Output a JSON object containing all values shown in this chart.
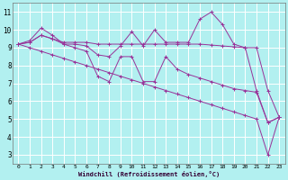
{
  "xlabel": "Windchill (Refroidissement éolien,°C)",
  "xlim": [
    -0.5,
    23.5
  ],
  "ylim": [
    2.5,
    11.5
  ],
  "xticks": [
    0,
    1,
    2,
    3,
    4,
    5,
    6,
    7,
    8,
    9,
    10,
    11,
    12,
    13,
    14,
    15,
    16,
    17,
    18,
    19,
    20,
    21,
    22,
    23
  ],
  "yticks": [
    3,
    4,
    5,
    6,
    7,
    8,
    9,
    10,
    11
  ],
  "background_color": "#b2f0f0",
  "grid_color": "#ffffff",
  "line_color": "#993399",
  "lines": [
    {
      "x": [
        0,
        1,
        2,
        3,
        4,
        5,
        6,
        7,
        8,
        9,
        10,
        11,
        12,
        13,
        14,
        15,
        16,
        17,
        18,
        19,
        20,
        21,
        22,
        23
      ],
      "y": [
        9.2,
        9.4,
        10.1,
        9.7,
        9.2,
        9.2,
        9.1,
        8.6,
        8.5,
        9.1,
        9.9,
        9.1,
        10.0,
        9.3,
        9.3,
        9.3,
        10.6,
        11.0,
        10.3,
        9.2,
        9.0,
        6.6,
        4.8,
        5.1
      ]
    },
    {
      "x": [
        0,
        1,
        2,
        3,
        4,
        5,
        6,
        7,
        8,
        9,
        10,
        11,
        12,
        13,
        14,
        15,
        16,
        17,
        18,
        19,
        20,
        21,
        22,
        23
      ],
      "y": [
        9.2,
        9.3,
        9.7,
        9.5,
        9.3,
        9.3,
        9.3,
        9.2,
        9.2,
        9.2,
        9.2,
        9.2,
        9.2,
        9.2,
        9.2,
        9.2,
        9.2,
        9.15,
        9.1,
        9.05,
        9.0,
        9.0,
        6.6,
        5.1
      ]
    },
    {
      "x": [
        0,
        1,
        2,
        3,
        4,
        5,
        6,
        7,
        8,
        9,
        10,
        11,
        12,
        13,
        14,
        15,
        16,
        17,
        18,
        19,
        20,
        21,
        22,
        23
      ],
      "y": [
        9.2,
        9.3,
        9.7,
        9.5,
        9.2,
        9.0,
        8.8,
        7.4,
        7.1,
        8.5,
        8.5,
        7.1,
        7.1,
        8.5,
        7.8,
        7.5,
        7.3,
        7.1,
        6.9,
        6.7,
        6.6,
        6.5,
        4.8,
        5.1
      ]
    },
    {
      "x": [
        0,
        1,
        2,
        3,
        4,
        5,
        6,
        7,
        8,
        9,
        10,
        11,
        12,
        13,
        14,
        15,
        16,
        17,
        18,
        19,
        20,
        21,
        22,
        23
      ],
      "y": [
        9.2,
        9.0,
        8.8,
        8.6,
        8.4,
        8.2,
        8.0,
        7.8,
        7.6,
        7.4,
        7.2,
        7.0,
        6.8,
        6.6,
        6.4,
        6.2,
        6.0,
        5.8,
        5.6,
        5.4,
        5.2,
        5.0,
        3.0,
        5.1
      ]
    }
  ]
}
